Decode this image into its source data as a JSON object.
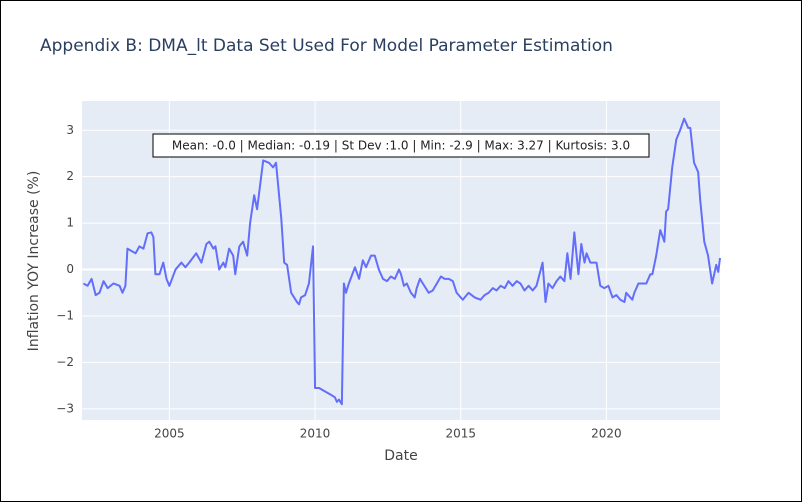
{
  "chart_data": {
    "type": "line",
    "title": "Appendix B: DMA_lt Data Set Used For Model Parameter Estimation",
    "xlabel": "Date",
    "ylabel": "Inflation YOY Increase (%)",
    "annotation": "Mean: -0.0 | Median: -0.19 | St Dev :1.0 | Min: -2.9 | Max: 3.27 | Kurtosis: 3.0",
    "grid": true,
    "xlim": [
      2002,
      2023.9
    ],
    "xticks": [
      2005,
      2010,
      2015,
      2020
    ],
    "ylim": [
      -3.24,
      3.63
    ],
    "yticks": [
      {
        "value": -3,
        "label": "−3"
      },
      {
        "value": -2,
        "label": "−2"
      },
      {
        "value": -1,
        "label": "−1"
      },
      0,
      1,
      2,
      3
    ],
    "x": [
      2002.05,
      2002.19,
      2002.33,
      2002.47,
      2002.6,
      2002.74,
      2002.88,
      2003.08,
      2003.29,
      2003.39,
      2003.49,
      2003.56,
      2003.7,
      2003.84,
      2003.97,
      2004.11,
      2004.25,
      2004.38,
      2004.45,
      2004.52,
      2004.66,
      2004.79,
      2004.9,
      2005.0,
      2005.21,
      2005.41,
      2005.55,
      2005.68,
      2005.92,
      2006.1,
      2006.27,
      2006.37,
      2006.51,
      2006.58,
      2006.71,
      2006.85,
      2006.92,
      2007.05,
      2007.19,
      2007.26,
      2007.4,
      2007.53,
      2007.67,
      2007.77,
      2007.91,
      2008.01,
      2008.15,
      2008.22,
      2008.42,
      2008.56,
      2008.66,
      2008.84,
      2008.94,
      2009.04,
      2009.18,
      2009.38,
      2009.45,
      2009.52,
      2009.66,
      2009.79,
      2009.93,
      2010.0,
      2010.14,
      2010.27,
      2010.55,
      2010.68,
      2010.75,
      2010.82,
      2010.92,
      2010.99,
      2011.06,
      2011.16,
      2011.37,
      2011.51,
      2011.64,
      2011.75,
      2011.92,
      2012.05,
      2012.19,
      2012.33,
      2012.47,
      2012.6,
      2012.74,
      2012.88,
      2012.95,
      2013.05,
      2013.15,
      2013.29,
      2013.42,
      2013.49,
      2013.6,
      2013.7,
      2013.9,
      2014.04,
      2014.32,
      2014.45,
      2014.59,
      2014.73,
      2014.86,
      2015.07,
      2015.27,
      2015.48,
      2015.68,
      2015.82,
      2015.96,
      2016.1,
      2016.23,
      2016.37,
      2016.51,
      2016.64,
      2016.78,
      2016.92,
      2017.05,
      2017.19,
      2017.33,
      2017.47,
      2017.6,
      2017.81,
      2017.91,
      2018.01,
      2018.15,
      2018.29,
      2018.42,
      2018.56,
      2018.66,
      2018.77,
      2018.9,
      2019.04,
      2019.14,
      2019.25,
      2019.32,
      2019.45,
      2019.66,
      2019.79,
      2019.93,
      2020.07,
      2020.21,
      2020.34,
      2020.48,
      2020.62,
      2020.68,
      2020.82,
      2020.89,
      2020.96,
      2021.1,
      2021.37,
      2021.51,
      2021.58,
      2021.71,
      2021.85,
      2021.99,
      2022.05,
      2022.12,
      2022.26,
      2022.4,
      2022.53,
      2022.67,
      2022.81,
      2022.88,
      2023.01,
      2023.15,
      2023.22,
      2023.36,
      2023.49,
      2023.63,
      2023.77,
      2023.84,
      2023.9
    ],
    "series": [
      {
        "color": "#636efa",
        "values": [
          -0.3,
          -0.35,
          -0.2,
          -0.55,
          -0.5,
          -0.25,
          -0.4,
          -0.3,
          -0.35,
          -0.5,
          -0.35,
          0.45,
          0.4,
          0.35,
          0.5,
          0.45,
          0.78,
          0.8,
          0.7,
          -0.1,
          -0.1,
          0.15,
          -0.2,
          -0.35,
          0,
          0.15,
          0.05,
          0.15,
          0.35,
          0.15,
          0.55,
          0.6,
          0.45,
          0.5,
          0,
          0.15,
          0.05,
          0.45,
          0.3,
          -0.1,
          0.5,
          0.6,
          0.3,
          1.0,
          1.6,
          1.3,
          2.0,
          2.35,
          2.3,
          2.2,
          2.3,
          1.1,
          0.15,
          0.1,
          -0.5,
          -0.7,
          -0.75,
          -0.6,
          -0.55,
          -0.3,
          0.5,
          -2.55,
          -2.55,
          -2.6,
          -2.7,
          -2.75,
          -2.85,
          -2.8,
          -2.9,
          -0.3,
          -0.5,
          -0.3,
          0.05,
          -0.2,
          0.2,
          0.05,
          0.3,
          0.3,
          0,
          -0.2,
          -0.25,
          -0.15,
          -0.2,
          0,
          -0.1,
          -0.35,
          -0.3,
          -0.5,
          -0.6,
          -0.4,
          -0.2,
          -0.3,
          -0.5,
          -0.45,
          -0.15,
          -0.2,
          -0.2,
          -0.25,
          -0.5,
          -0.65,
          -0.5,
          -0.6,
          -0.65,
          -0.55,
          -0.5,
          -0.4,
          -0.45,
          -0.35,
          -0.4,
          -0.25,
          -0.35,
          -0.25,
          -0.3,
          -0.45,
          -0.35,
          -0.45,
          -0.35,
          0.15,
          -0.7,
          -0.3,
          -0.4,
          -0.25,
          -0.15,
          -0.25,
          0.35,
          -0.2,
          0.8,
          -0.1,
          0.55,
          0.15,
          0.35,
          0.15,
          0.15,
          -0.35,
          -0.4,
          -0.35,
          -0.6,
          -0.55,
          -0.65,
          -0.7,
          -0.5,
          -0.6,
          -0.65,
          -0.5,
          -0.3,
          -0.3,
          -0.1,
          -0.1,
          0.3,
          0.85,
          0.6,
          1.25,
          1.3,
          2.2,
          2.8,
          3.0,
          3.25,
          3.05,
          3.05,
          2.3,
          2.1,
          1.5,
          0.6,
          0.3,
          -0.3,
          0.1,
          -0.05,
          0.25
        ]
      }
    ]
  }
}
